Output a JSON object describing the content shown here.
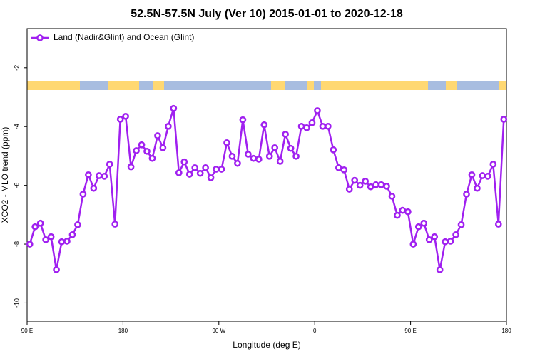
{
  "chart_data": {
    "type": "line",
    "title": "52.5N-57.5N July (Ver 10)   2015-01-01 to 2020-12-18",
    "x_label": "Longitude (deg E)",
    "y_label": "XCO2 - MLO trend (ppm)",
    "xlim": [
      90,
      540
    ],
    "xticks": [
      {
        "value": 90,
        "label": "90 E"
      },
      {
        "value": 180,
        "label": "180"
      },
      {
        "value": 270,
        "label": "90 W"
      },
      {
        "value": 360,
        "label": "0"
      },
      {
        "value": 450,
        "label": "90 E"
      },
      {
        "value": 540,
        "label": "180"
      }
    ],
    "ylim": [
      -10.62,
      -0.67
    ],
    "yticks": [
      -10,
      -8,
      -6,
      -4,
      -2
    ],
    "legend": "top-left",
    "x": [
      92.5,
      97.5,
      102.5,
      107.5,
      112.5,
      117.5,
      122.5,
      127.5,
      132.5,
      137.5,
      142.5,
      147.5,
      152.5,
      157.5,
      162.5,
      167.5,
      172.5,
      177.5,
      182.5,
      187.5,
      192.5,
      197.5,
      202.5,
      207.5,
      212.5,
      217.5,
      222.5,
      227.5,
      232.5,
      237.5,
      242.5,
      247.5,
      252.5,
      257.5,
      262.5,
      267.5,
      272.5,
      277.5,
      282.5,
      287.5,
      292.5,
      297.5,
      302.5,
      307.5,
      312.5,
      317.5,
      322.5,
      327.5,
      332.5,
      337.5,
      342.5,
      347.5,
      352.5,
      357.5,
      362.5,
      367.5,
      372.5,
      377.5,
      382.5,
      387.5,
      392.5,
      397.5,
      402.5,
      407.5,
      412.5,
      417.5,
      422.5,
      427.5,
      432.5,
      437.5,
      442.5,
      447.5,
      452.5,
      457.5,
      462.5,
      467.5,
      472.5,
      477.5,
      482.5,
      487.5,
      492.5,
      497.5,
      502.5,
      507.5,
      512.5,
      517.5,
      522.5,
      527.5,
      532.5,
      537.5
    ],
    "series": [
      {
        "name": "Land (Nadir&Glint) and Ocean (Glint)",
        "color": "#a020f0",
        "values": [
          -8.0,
          -7.41,
          -7.29,
          -7.85,
          -7.75,
          -8.87,
          -7.92,
          -7.9,
          -7.68,
          -7.34,
          -6.3,
          -5.64,
          -6.1,
          -5.67,
          -5.69,
          -5.28,
          -7.32,
          -3.75,
          -3.65,
          -5.37,
          -4.82,
          -4.62,
          -4.84,
          -5.08,
          -4.31,
          -4.72,
          -3.99,
          -3.38,
          -5.57,
          -5.2,
          -5.62,
          -5.4,
          -5.59,
          -5.4,
          -5.74,
          -5.45,
          -5.45,
          -4.55,
          -5.01,
          -5.25,
          -3.77,
          -4.94,
          -5.08,
          -5.11,
          -3.94,
          -5.01,
          -4.72,
          -5.18,
          -4.26,
          -4.74,
          -5.01,
          -3.99,
          -4.04,
          -3.87,
          -3.46,
          -3.99,
          -3.99,
          -4.79,
          -5.4,
          -5.47,
          -6.13,
          -5.83,
          -6.0,
          -5.86,
          -6.05,
          -5.98,
          -5.98,
          -6.03,
          -6.37,
          -7.02,
          -6.85,
          -6.9,
          -8.0,
          -7.41,
          -7.29,
          -7.85,
          -7.75,
          -8.87,
          -7.92,
          -7.9,
          -7.68,
          -7.34,
          -6.3,
          -5.64,
          -6.1,
          -5.67,
          -5.69,
          -5.28,
          -7.32,
          -3.75
        ]
      }
    ]
  }
}
